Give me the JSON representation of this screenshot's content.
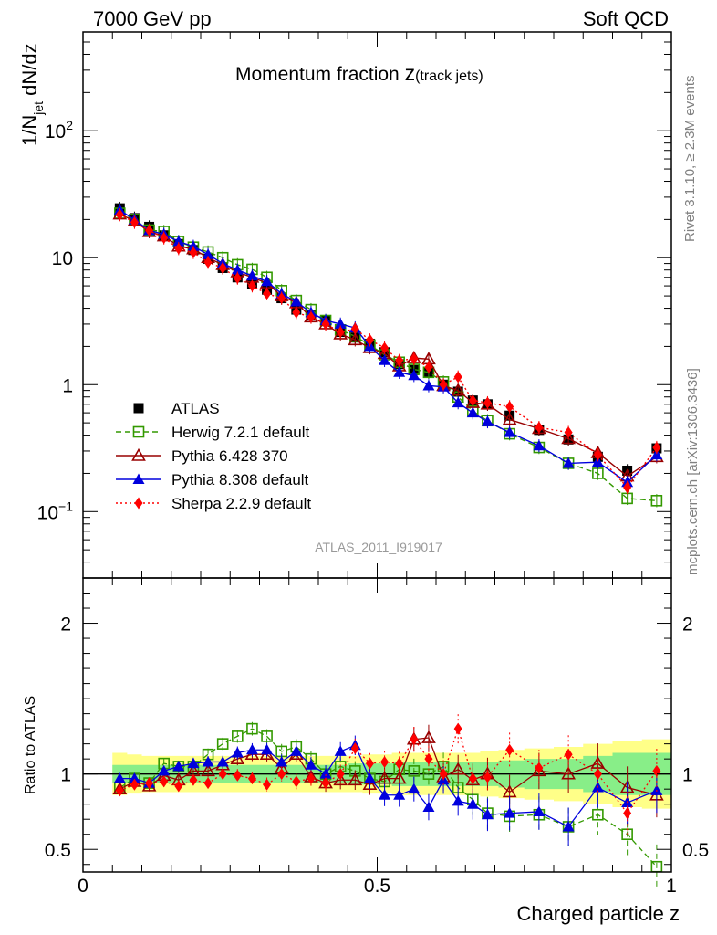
{
  "header": {
    "left": "7000 GeV pp",
    "right": "Soft QCD"
  },
  "side_labels": {
    "rivet": "Rivet 3.1.10, ≥ 2.3M events",
    "source": "mcplots.cern.ch [arXiv:1306.3436]"
  },
  "chart_data": {
    "type": "scatter",
    "title_main": "Momentum fraction ",
    "title_z": "z",
    "title_sub": "(track jets)",
    "watermark": "ATLAS_2011_I919017",
    "xlabel": "Charged particle z",
    "ylabel_pre": "1/N",
    "ylabel_sub": "jet",
    "ylabel_post": " dN/dz",
    "xlim": [
      0,
      1
    ],
    "ylim": [
      0.03,
      600
    ],
    "y_scale": "log",
    "x_ticks": [
      "0",
      "0.5",
      "1"
    ],
    "y_ticks": [
      {
        "value": 0.1,
        "base": "10",
        "exp": "−1"
      },
      {
        "value": 1,
        "base": "1",
        "exp": ""
      },
      {
        "value": 10,
        "base": "10",
        "exp": ""
      },
      {
        "value": 100,
        "base": "10",
        "exp": "2"
      }
    ],
    "x": [
      0.0625,
      0.0875,
      0.1125,
      0.1375,
      0.1625,
      0.1875,
      0.2125,
      0.2375,
      0.2625,
      0.2875,
      0.3125,
      0.3375,
      0.3625,
      0.3875,
      0.4125,
      0.4375,
      0.4625,
      0.4875,
      0.5125,
      0.5375,
      0.5625,
      0.5875,
      0.6125,
      0.6375,
      0.6625,
      0.6875,
      0.725,
      0.775,
      0.825,
      0.875,
      0.925,
      0.975
    ],
    "legend": {
      "position": "bottom-left"
    },
    "series": [
      {
        "name": "ATLAS",
        "color": "#000000",
        "marker": "square-filled",
        "line": "none",
        "values": [
          24.5,
          20.5,
          17.5,
          15.0,
          12.8,
          11.5,
          9.8,
          8.3,
          7.0,
          6.2,
          5.6,
          4.8,
          3.9,
          3.5,
          3.2,
          2.6,
          2.35,
          2.1,
          1.8,
          1.45,
          1.3,
          1.25,
          1.0,
          0.88,
          0.75,
          0.7,
          0.57,
          0.44,
          0.37,
          0.27,
          0.21,
          0.315
        ]
      },
      {
        "name": "Herwig 7.2.1 default",
        "color": "#339900",
        "marker": "square-open",
        "line": "dashed",
        "values": [
          22.4,
          20.0,
          16.5,
          16.1,
          13.4,
          12.1,
          11.1,
          10.0,
          8.8,
          8.1,
          7.0,
          5.5,
          4.6,
          3.9,
          3.2,
          2.7,
          2.4,
          2.05,
          1.72,
          1.5,
          1.32,
          1.25,
          1.05,
          0.8,
          0.62,
          0.52,
          0.41,
          0.32,
          0.24,
          0.2,
          0.127,
          0.122
        ]
      },
      {
        "name": "Pythia 6.428 370",
        "color": "#990000",
        "marker": "triangle-open",
        "line": "solid",
        "values": [
          22.0,
          19.5,
          16.0,
          14.8,
          12.3,
          11.7,
          10.0,
          8.8,
          7.7,
          7.0,
          6.3,
          5.0,
          4.4,
          3.4,
          3.0,
          2.5,
          2.25,
          1.95,
          1.75,
          1.4,
          1.62,
          1.59,
          0.98,
          0.9,
          0.72,
          0.7,
          0.53,
          0.45,
          0.375,
          0.29,
          0.19,
          0.27
        ]
      },
      {
        "name": "Pythia 8.308 default",
        "color": "#0000dd",
        "marker": "triangle-filled",
        "line": "solid",
        "values": [
          23.7,
          19.9,
          16.4,
          15.3,
          13.4,
          12.3,
          10.6,
          9.0,
          8.0,
          7.2,
          6.5,
          5.2,
          4.5,
          3.7,
          3.2,
          3.0,
          2.8,
          2.0,
          1.55,
          1.25,
          1.18,
          0.98,
          0.96,
          0.72,
          0.6,
          0.51,
          0.42,
          0.33,
          0.24,
          0.245,
          0.17,
          0.28
        ]
      },
      {
        "name": "Sherpa 2.2.9 default",
        "color": "#ff0000",
        "marker": "diamond-filled",
        "line": "dotted",
        "values": [
          21.8,
          19.0,
          16.4,
          14.3,
          11.8,
          11.0,
          9.2,
          8.3,
          6.9,
          6.0,
          5.2,
          4.8,
          3.7,
          3.4,
          3.0,
          2.6,
          2.75,
          2.25,
          1.95,
          1.55,
          1.6,
          1.37,
          1.0,
          1.15,
          0.75,
          0.72,
          0.67,
          0.46,
          0.42,
          0.28,
          0.155,
          0.32
        ]
      }
    ],
    "ratio": {
      "ylabel": "Ratio to ATLAS",
      "ylim": [
        0.35,
        2.3
      ],
      "y_ticks": [
        "0.5",
        "1",
        "2"
      ],
      "band_inner": [
        0.06,
        0.06,
        0.06,
        0.06,
        0.06,
        0.06,
        0.06,
        0.06,
        0.06,
        0.06,
        0.06,
        0.06,
        0.06,
        0.06,
        0.06,
        0.06,
        0.07,
        0.07,
        0.07,
        0.08,
        0.08,
        0.08,
        0.08,
        0.08,
        0.08,
        0.08,
        0.09,
        0.1,
        0.1,
        0.12,
        0.14,
        0.14
      ],
      "band_outer": [
        0.14,
        0.13,
        0.12,
        0.12,
        0.12,
        0.12,
        0.12,
        0.12,
        0.12,
        0.12,
        0.12,
        0.12,
        0.12,
        0.12,
        0.12,
        0.12,
        0.12,
        0.13,
        0.13,
        0.14,
        0.14,
        0.14,
        0.14,
        0.14,
        0.14,
        0.15,
        0.16,
        0.17,
        0.18,
        0.2,
        0.22,
        0.23
      ],
      "series": [
        {
          "name": "Herwig 7.2.1 default",
          "values": [
            0.91,
            0.97,
            0.94,
            1.07,
            1.05,
            1.05,
            1.13,
            1.2,
            1.25,
            1.3,
            1.25,
            1.15,
            1.18,
            1.1,
            1.0,
            1.05,
            1.02,
            0.97,
            0.95,
            1.03,
            1.02,
            1.0,
            1.05,
            0.91,
            0.83,
            0.74,
            0.72,
            0.73,
            0.65,
            0.73,
            0.6,
            0.385
          ]
        },
        {
          "name": "Pythia 6.428 370",
          "values": [
            0.9,
            0.95,
            0.92,
            0.99,
            0.96,
            1.02,
            1.02,
            1.06,
            1.1,
            1.13,
            1.13,
            1.04,
            1.13,
            0.98,
            0.94,
            0.96,
            0.96,
            0.93,
            0.97,
            0.97,
            1.23,
            1.24,
            0.98,
            1.03,
            0.96,
            1.0,
            0.88,
            1.02,
            1.0,
            1.07,
            0.91,
            0.86
          ]
        },
        {
          "name": "Pythia 8.308 default",
          "values": [
            0.97,
            0.97,
            0.94,
            1.02,
            1.05,
            1.07,
            1.08,
            1.08,
            1.14,
            1.16,
            1.16,
            1.08,
            1.15,
            1.06,
            1.0,
            1.15,
            1.19,
            0.97,
            0.86,
            0.86,
            0.9,
            0.78,
            0.96,
            0.82,
            0.8,
            0.73,
            0.74,
            0.75,
            0.65,
            0.91,
            0.81,
            0.89
          ]
        },
        {
          "name": "Sherpa 2.2.9 default",
          "values": [
            0.89,
            0.93,
            0.94,
            0.95,
            0.92,
            0.96,
            0.94,
            1.0,
            0.99,
            0.97,
            0.93,
            1.0,
            0.95,
            0.97,
            0.94,
            1.0,
            1.17,
            1.07,
            1.08,
            1.07,
            1.23,
            1.1,
            1.0,
            1.3,
            0.97,
            0.98,
            1.16,
            1.04,
            1.13,
            1.0,
            0.74,
            1.02
          ]
        }
      ]
    }
  }
}
